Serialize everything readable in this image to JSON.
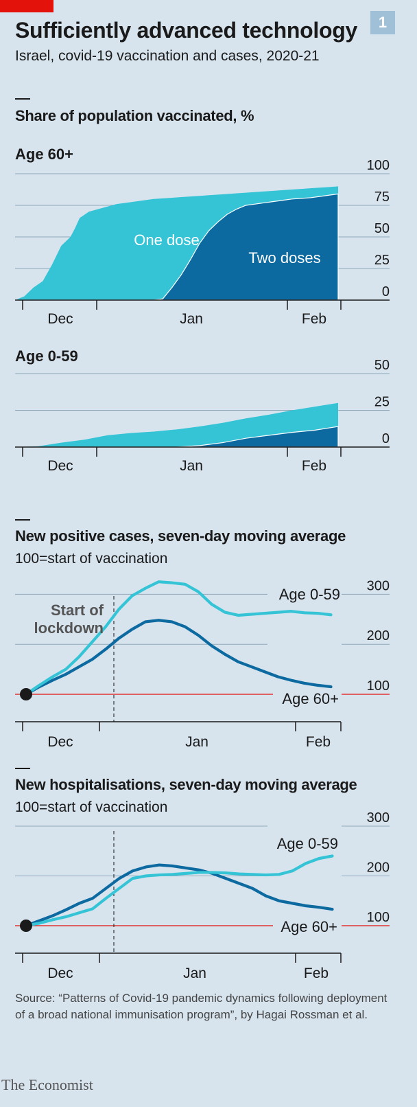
{
  "header": {
    "title": "Sufficiently advanced technology",
    "subtitle": "Israel, covid-19 vaccination and cases, 2020-21",
    "badge": "1"
  },
  "vaccinated_section": {
    "title": "Share of population vaccinated, %"
  },
  "cases_section": {
    "title": "New positive cases, seven-day moving average",
    "subtitle": "100=start of vaccination"
  },
  "hosp_section": {
    "title": "New hospitalisations, seven-day moving average",
    "subtitle": "100=start of vaccination"
  },
  "footer": {
    "source": "Source: “Patterns of Covid-19 pandemic dynamics following deployment of a broad national immunisation program”, by Hagai Rossman et al.",
    "brand": "The Economist"
  },
  "colors": {
    "light": "#35c3d6",
    "dark": "#0c6aa0",
    "red": "#e3120b",
    "grid": "#8fa9bb",
    "text": "#1a1a1a"
  },
  "chart_data": [
    {
      "type": "area",
      "title": "Age 60+",
      "ylim": [
        0,
        100
      ],
      "yticks": [
        100,
        75,
        50,
        25,
        0
      ],
      "xticks": [
        "Dec",
        "Jan",
        "Feb"
      ],
      "series": [
        {
          "name": "One dose",
          "x": [
            0,
            2,
            4,
            6,
            8,
            10,
            12,
            13,
            14,
            16,
            18,
            20,
            22,
            24,
            26,
            28,
            30,
            32,
            34,
            36,
            38,
            40,
            42,
            44,
            46,
            48,
            50,
            52,
            54,
            56,
            58,
            60,
            62,
            64,
            66,
            68,
            70
          ],
          "values": [
            0,
            3,
            10,
            15,
            28,
            43,
            50,
            57,
            65,
            70,
            72,
            74,
            76,
            77,
            78,
            79,
            80,
            80.5,
            81,
            81.5,
            82,
            82.5,
            83,
            83.5,
            84,
            84.5,
            85,
            85.5,
            86,
            86.5,
            87,
            87.5,
            88,
            88.5,
            89,
            89.5,
            90
          ]
        },
        {
          "name": "Two doses",
          "x": [
            0,
            2,
            4,
            6,
            8,
            10,
            12,
            14,
            16,
            18,
            20,
            22,
            24,
            26,
            28,
            30,
            32,
            34,
            36,
            38,
            40,
            42,
            44,
            46,
            48,
            50,
            52,
            54,
            56,
            58,
            60,
            62,
            64,
            66,
            68,
            70
          ],
          "values": [
            0,
            0,
            0,
            0,
            0,
            0,
            0,
            0,
            0,
            0,
            0,
            0,
            0,
            0,
            0,
            0,
            1,
            10,
            20,
            32,
            45,
            55,
            62,
            68,
            72,
            75,
            76,
            77,
            78,
            79,
            80,
            80.5,
            81,
            82,
            83,
            84
          ]
        }
      ]
    },
    {
      "type": "area",
      "title": "Age 0-59",
      "ylim": [
        0,
        50
      ],
      "yticks": [
        50,
        25,
        0
      ],
      "xticks": [
        "Dec",
        "Jan",
        "Feb"
      ],
      "series": [
        {
          "name": "",
          "x": [
            0,
            5,
            10,
            15,
            20,
            25,
            30,
            35,
            40,
            45,
            50,
            55,
            60,
            65,
            70
          ],
          "values": [
            0,
            0.5,
            3,
            5,
            8,
            9.5,
            10.5,
            12,
            14,
            16.5,
            19.5,
            22,
            25,
            27.5,
            30
          ]
        },
        {
          "name": "",
          "x": [
            0,
            5,
            10,
            15,
            20,
            25,
            30,
            35,
            40,
            45,
            50,
            55,
            60,
            65,
            70
          ],
          "values": [
            0,
            0,
            0,
            0,
            0,
            0,
            0,
            0,
            1,
            3,
            6,
            8,
            10,
            11.5,
            14
          ]
        }
      ]
    },
    {
      "type": "line",
      "title": "New positive cases, seven-day moving average",
      "ylim": [
        50,
        320
      ],
      "yticks": [
        300,
        200,
        100
      ],
      "xticks": [
        "Dec",
        "Jan",
        "Feb"
      ],
      "annotation": "Start of lockdown",
      "series": [
        {
          "name": "Age 0-59",
          "x": [
            0,
            3,
            6,
            9,
            12,
            15,
            18,
            21,
            24,
            27,
            30,
            33,
            36,
            39,
            42,
            45,
            48,
            51,
            54,
            57,
            60,
            63,
            66,
            69
          ],
          "values": [
            100,
            118,
            135,
            150,
            175,
            205,
            235,
            270,
            297,
            312,
            325,
            323,
            320,
            305,
            280,
            264,
            258,
            260,
            262,
            264,
            266,
            263,
            262,
            259
          ]
        },
        {
          "name": "Age 60+",
          "x": [
            0,
            3,
            6,
            9,
            12,
            15,
            18,
            21,
            24,
            27,
            30,
            33,
            36,
            39,
            42,
            45,
            48,
            51,
            54,
            57,
            60,
            63,
            66,
            69
          ],
          "values": [
            100,
            115,
            128,
            140,
            155,
            170,
            190,
            212,
            230,
            245,
            248,
            245,
            235,
            218,
            197,
            180,
            165,
            155,
            145,
            135,
            128,
            122,
            118,
            115
          ]
        }
      ]
    },
    {
      "type": "line",
      "title": "New hospitalisations, seven-day moving average",
      "ylim": [
        50,
        320
      ],
      "yticks": [
        300,
        200,
        100
      ],
      "xticks": [
        "Dec",
        "Jan",
        "Feb"
      ],
      "series": [
        {
          "name": "Age 0-59",
          "x": [
            0,
            3,
            6,
            9,
            12,
            15,
            18,
            21,
            24,
            27,
            30,
            33,
            36,
            39,
            42,
            45,
            48,
            51,
            54,
            57,
            60,
            63,
            66,
            69
          ],
          "values": [
            100,
            105,
            112,
            118,
            126,
            134,
            155,
            175,
            195,
            200,
            202,
            203,
            205,
            207,
            207,
            206,
            204,
            203,
            202,
            203,
            210,
            225,
            235,
            240
          ]
        },
        {
          "name": "Age 60+",
          "x": [
            0,
            3,
            6,
            9,
            12,
            15,
            18,
            21,
            24,
            27,
            30,
            33,
            36,
            39,
            42,
            45,
            48,
            51,
            54,
            57,
            60,
            63,
            66,
            69
          ],
          "values": [
            100,
            110,
            120,
            132,
            145,
            155,
            175,
            195,
            210,
            218,
            222,
            220,
            216,
            212,
            205,
            195,
            185,
            175,
            160,
            150,
            145,
            140,
            137,
            133
          ]
        }
      ]
    }
  ]
}
